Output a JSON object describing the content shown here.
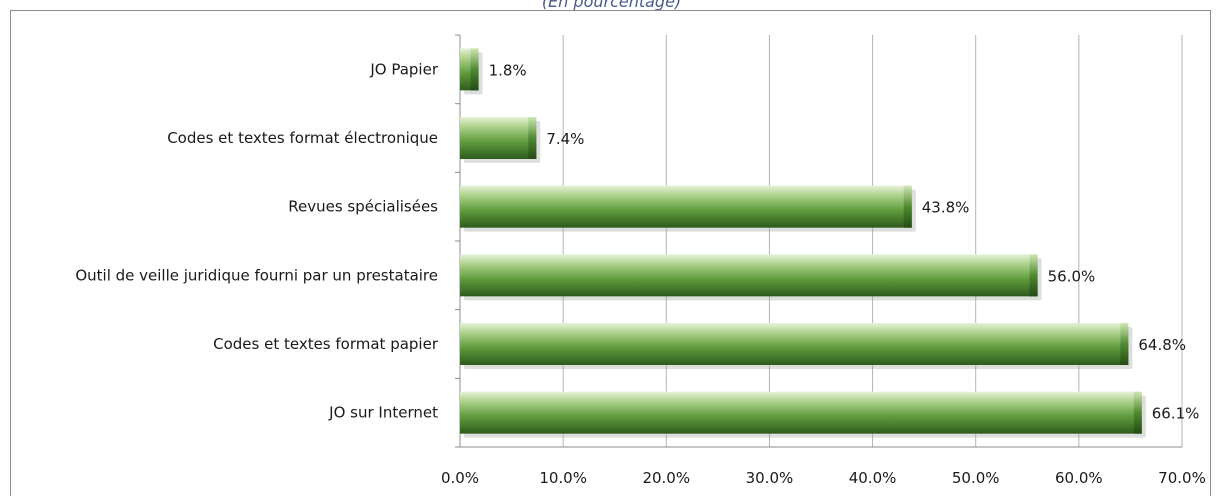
{
  "chart_data": {
    "type": "bar",
    "orientation": "horizontal",
    "subtitle": "(En pourcentage)",
    "categories": [
      "JO Papier",
      "Codes et textes format électronique",
      "Revues spécialisées",
      "Outil de veille juridique fourni par un prestataire",
      "Codes et textes format papier",
      "JO sur Internet"
    ],
    "values": [
      1.8,
      7.4,
      43.8,
      56.0,
      64.8,
      66.1
    ],
    "value_labels": [
      "1.8%",
      "7.4%",
      "43.8%",
      "56.0%",
      "64.8%",
      "66.1%"
    ],
    "xlim": [
      0,
      70
    ],
    "xticks": [
      "0.0%",
      "10.0%",
      "20.0%",
      "30.0%",
      "40.0%",
      "50.0%",
      "60.0%",
      "70.0%"
    ],
    "grid": true,
    "bar_color": "#5e9a3c"
  }
}
